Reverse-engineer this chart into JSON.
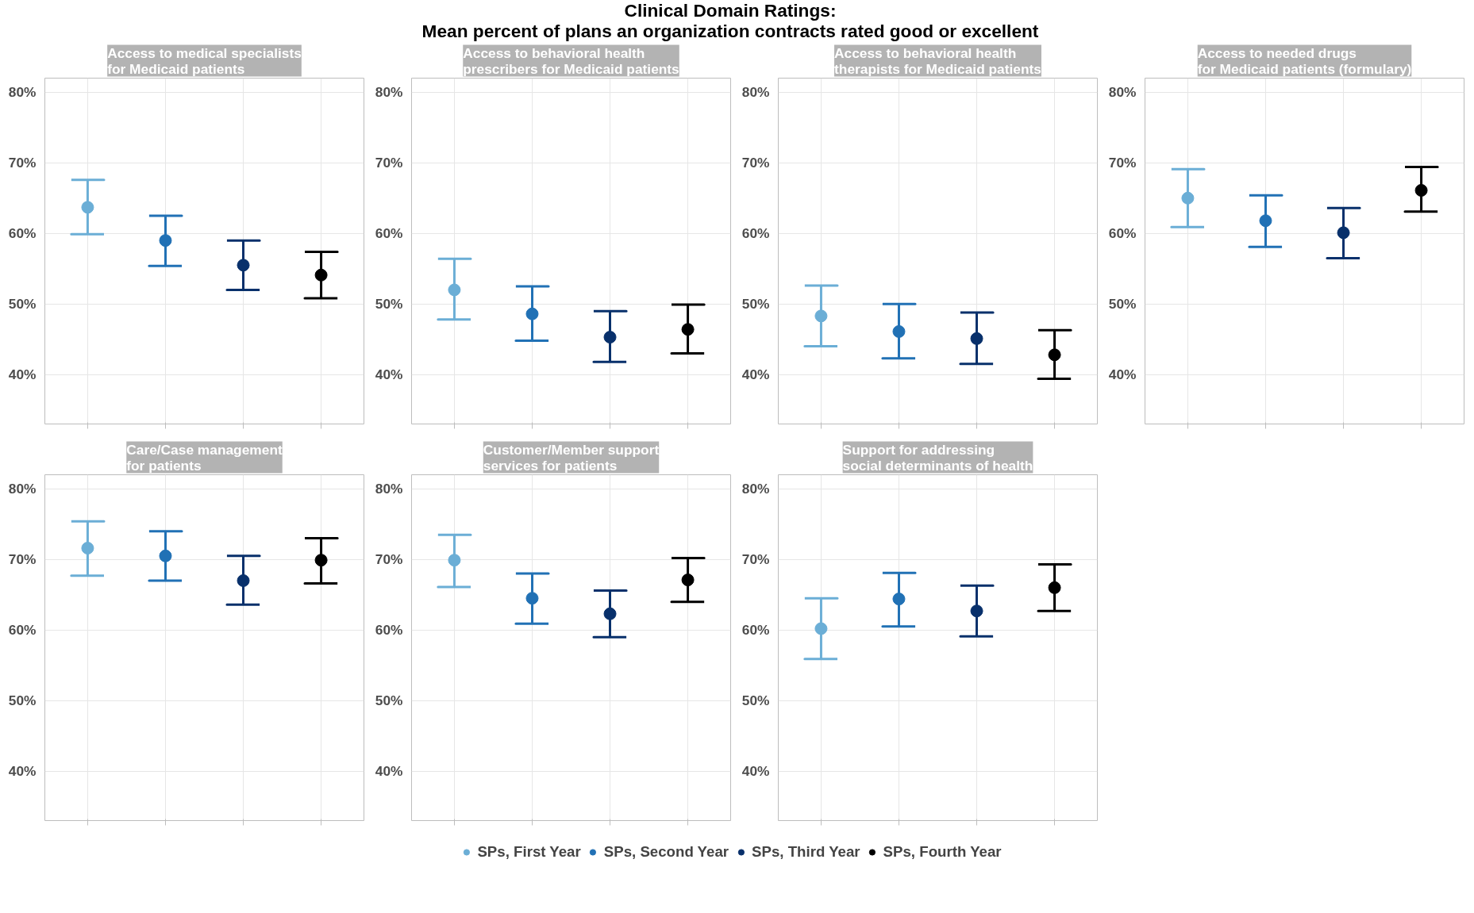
{
  "chart_data": [
    {
      "type": "scatter",
      "title": "Access to medical specialists\nfor Medicaid patients",
      "annotations": [
        "Clinical Domain Ratings:\nMean percent of plans an organization contracts rated good or excellent"
      ],
      "categories": [
        null,
        null,
        null,
        null
      ],
      "ylim": [
        33,
        82
      ],
      "yticks": [
        {
          "value": 40,
          "label": "40%"
        },
        {
          "value": 50,
          "label": "50%"
        },
        {
          "value": 60,
          "label": "60%"
        },
        {
          "value": 70,
          "label": "70%"
        },
        {
          "value": 80,
          "label": "80%"
        }
      ],
      "grid": true,
      "marker": "circle",
      "tick_labels": "y",
      "series": [
        {
          "color": "#6baed6",
          "values": [
            63.7,
            null,
            null,
            null
          ],
          "errors": [
            [
              59.9,
              67.6
            ],
            null,
            null,
            null
          ]
        },
        {
          "color": "#2171b5",
          "values": [
            null,
            59.0,
            null,
            null
          ],
          "errors": [
            null,
            [
              55.4,
              62.5
            ],
            null,
            null
          ]
        },
        {
          "color": "#08306b",
          "values": [
            null,
            null,
            55.5,
            null
          ],
          "errors": [
            null,
            null,
            [
              52.0,
              59.0
            ],
            null
          ]
        },
        {
          "color": "#000000",
          "values": [
            null,
            null,
            null,
            54.1
          ],
          "errors": [
            null,
            null,
            null,
            [
              50.8,
              57.4
            ]
          ]
        }
      ]
    },
    {
      "type": "scatter",
      "title": "Access to behavioral health\nprescribers for Medicaid patients",
      "categories": [
        null,
        null,
        null,
        null
      ],
      "ylim": [
        33,
        82
      ],
      "yticks": [
        {
          "value": 40,
          "label": "40%"
        },
        {
          "value": 50,
          "label": "50%"
        },
        {
          "value": 60,
          "label": "60%"
        },
        {
          "value": 70,
          "label": "70%"
        },
        {
          "value": 80,
          "label": "80%"
        }
      ],
      "grid": true,
      "marker": "circle",
      "tick_labels": "y",
      "series": [
        {
          "color": "#6baed6",
          "values": [
            52.0,
            null,
            null,
            null
          ],
          "errors": [
            [
              47.8,
              56.4
            ],
            null,
            null,
            null
          ]
        },
        {
          "color": "#2171b5",
          "values": [
            null,
            48.6,
            null,
            null
          ],
          "errors": [
            null,
            [
              44.8,
              52.5
            ],
            null,
            null
          ]
        },
        {
          "color": "#08306b",
          "values": [
            null,
            null,
            45.3,
            null
          ],
          "errors": [
            null,
            null,
            [
              41.8,
              49.0
            ],
            null
          ]
        },
        {
          "color": "#000000",
          "values": [
            null,
            null,
            null,
            46.4
          ],
          "errors": [
            null,
            null,
            null,
            [
              43.0,
              49.9
            ]
          ]
        }
      ]
    },
    {
      "type": "scatter",
      "title": "Access to behavioral health\ntherapists for Medicaid patients",
      "categories": [
        null,
        null,
        null,
        null
      ],
      "ylim": [
        33,
        82
      ],
      "yticks": [
        {
          "value": 40,
          "label": "40%"
        },
        {
          "value": 50,
          "label": "50%"
        },
        {
          "value": 60,
          "label": "60%"
        },
        {
          "value": 70,
          "label": "70%"
        },
        {
          "value": 80,
          "label": "80%"
        }
      ],
      "grid": true,
      "marker": "circle",
      "tick_labels": "y",
      "series": [
        {
          "color": "#6baed6",
          "values": [
            48.3,
            null,
            null,
            null
          ],
          "errors": [
            [
              44.0,
              52.6
            ],
            null,
            null,
            null
          ]
        },
        {
          "color": "#2171b5",
          "values": [
            null,
            46.1,
            null,
            null
          ],
          "errors": [
            null,
            [
              42.3,
              50.0
            ],
            null,
            null
          ]
        },
        {
          "color": "#08306b",
          "values": [
            null,
            null,
            45.1,
            null
          ],
          "errors": [
            null,
            null,
            [
              41.5,
              48.8
            ],
            null
          ]
        },
        {
          "color": "#000000",
          "values": [
            null,
            null,
            null,
            42.8
          ],
          "errors": [
            null,
            null,
            null,
            [
              39.4,
              46.3
            ]
          ]
        }
      ]
    },
    {
      "type": "scatter",
      "title": "Access to needed drugs\nfor Medicaid patients (formulary)",
      "categories": [
        null,
        null,
        null,
        null
      ],
      "ylim": [
        33,
        82
      ],
      "yticks": [
        {
          "value": 40,
          "label": "40%"
        },
        {
          "value": 50,
          "label": "50%"
        },
        {
          "value": 60,
          "label": "60%"
        },
        {
          "value": 70,
          "label": "70%"
        },
        {
          "value": 80,
          "label": "80%"
        }
      ],
      "grid": true,
      "marker": "circle",
      "tick_labels": "y",
      "series": [
        {
          "color": "#6baed6",
          "values": [
            65.0,
            null,
            null,
            null
          ],
          "errors": [
            [
              60.9,
              69.1
            ],
            null,
            null,
            null
          ]
        },
        {
          "color": "#2171b5",
          "values": [
            null,
            61.8,
            null,
            null
          ],
          "errors": [
            null,
            [
              58.1,
              65.4
            ],
            null,
            null
          ]
        },
        {
          "color": "#08306b",
          "values": [
            null,
            null,
            60.1,
            null
          ],
          "errors": [
            null,
            null,
            [
              56.5,
              63.6
            ],
            null
          ]
        },
        {
          "color": "#000000",
          "values": [
            null,
            null,
            null,
            66.1
          ],
          "errors": [
            null,
            null,
            null,
            [
              63.1,
              69.4
            ]
          ]
        }
      ]
    },
    {
      "type": "scatter",
      "title": "Care/Case management\nfor patients",
      "categories": [
        null,
        null,
        null,
        null
      ],
      "ylim": [
        33,
        82
      ],
      "yticks": [
        {
          "value": 40,
          "label": "40%"
        },
        {
          "value": 50,
          "label": "50%"
        },
        {
          "value": 60,
          "label": "60%"
        },
        {
          "value": 70,
          "label": "70%"
        },
        {
          "value": 80,
          "label": "80%"
        }
      ],
      "grid": true,
      "marker": "circle",
      "tick_labels": "y",
      "series": [
        {
          "color": "#6baed6",
          "values": [
            71.6,
            null,
            null,
            null
          ],
          "errors": [
            [
              67.7,
              75.4
            ],
            null,
            null,
            null
          ]
        },
        {
          "color": "#2171b5",
          "values": [
            null,
            70.5,
            null,
            null
          ],
          "errors": [
            null,
            [
              67.0,
              74.0
            ],
            null,
            null
          ]
        },
        {
          "color": "#08306b",
          "values": [
            null,
            null,
            67.0,
            null
          ],
          "errors": [
            null,
            null,
            [
              63.6,
              70.5
            ],
            null
          ]
        },
        {
          "color": "#000000",
          "values": [
            null,
            null,
            null,
            69.9
          ],
          "errors": [
            null,
            null,
            null,
            [
              66.6,
              73.0
            ]
          ]
        }
      ]
    },
    {
      "type": "scatter",
      "title": "Customer/Member support\nservices for patients",
      "categories": [
        null,
        null,
        null,
        null
      ],
      "ylim": [
        33,
        82
      ],
      "yticks": [
        {
          "value": 40,
          "label": "40%"
        },
        {
          "value": 50,
          "label": "50%"
        },
        {
          "value": 60,
          "label": "60%"
        },
        {
          "value": 70,
          "label": "70%"
        },
        {
          "value": 80,
          "label": "80%"
        }
      ],
      "grid": true,
      "marker": "circle",
      "tick_labels": "y",
      "series": [
        {
          "color": "#6baed6",
          "values": [
            69.9,
            null,
            null,
            null
          ],
          "errors": [
            [
              66.1,
              73.5
            ],
            null,
            null,
            null
          ]
        },
        {
          "color": "#2171b5",
          "values": [
            null,
            64.5,
            null,
            null
          ],
          "errors": [
            null,
            [
              60.9,
              68.0
            ],
            null,
            null
          ]
        },
        {
          "color": "#08306b",
          "values": [
            null,
            null,
            62.3,
            null
          ],
          "errors": [
            null,
            null,
            [
              59.0,
              65.6
            ],
            null
          ]
        },
        {
          "color": "#000000",
          "values": [
            null,
            null,
            null,
            67.1
          ],
          "errors": [
            null,
            null,
            null,
            [
              64.0,
              70.2
            ]
          ]
        }
      ]
    },
    {
      "type": "scatter",
      "title": "Support for addressing\nsocial determinants of health",
      "categories": [
        null,
        null,
        null,
        null
      ],
      "ylim": [
        33,
        82
      ],
      "yticks": [
        {
          "value": 40,
          "label": "40%"
        },
        {
          "value": 50,
          "label": "50%"
        },
        {
          "value": 60,
          "label": "60%"
        },
        {
          "value": 70,
          "label": "70%"
        },
        {
          "value": 80,
          "label": "80%"
        }
      ],
      "grid": true,
      "marker": "circle",
      "tick_labels": "y",
      "legend": "bottom",
      "series": [
        {
          "name": "SPs, First Year",
          "color": "#6baed6",
          "values": [
            60.2,
            null,
            null,
            null
          ],
          "errors": [
            [
              55.9,
              64.5
            ],
            null,
            null,
            null
          ]
        },
        {
          "name": "SPs, Second Year",
          "color": "#2171b5",
          "values": [
            null,
            64.4,
            null,
            null
          ],
          "errors": [
            null,
            [
              60.5,
              68.1
            ],
            null,
            null
          ]
        },
        {
          "name": "SPs, Third Year",
          "color": "#08306b",
          "values": [
            null,
            null,
            62.7,
            null
          ],
          "errors": [
            null,
            null,
            [
              59.1,
              66.3
            ],
            null
          ]
        },
        {
          "name": "SPs, Fourth Year",
          "color": "#000000",
          "values": [
            null,
            null,
            null,
            66.0
          ],
          "errors": [
            null,
            null,
            null,
            [
              62.7,
              69.3
            ]
          ]
        }
      ]
    }
  ]
}
